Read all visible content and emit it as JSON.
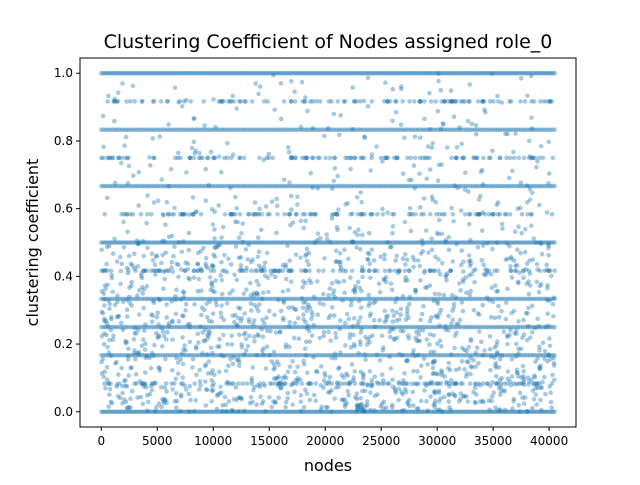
{
  "chart_data": {
    "type": "scatter",
    "title": "Clustering Coefficient of Nodes assigned role_0",
    "xlabel": "nodes",
    "ylabel": "clustering coefficient",
    "xlim": [
      -1900,
      42400
    ],
    "ylim": [
      -0.045,
      1.045
    ],
    "xticks": [
      0,
      5000,
      10000,
      15000,
      20000,
      25000,
      30000,
      35000,
      40000
    ],
    "yticks": [
      0.0,
      0.2,
      0.4,
      0.6,
      0.8,
      1.0
    ],
    "xtick_labels": [
      "0",
      "5000",
      "10000",
      "15000",
      "20000",
      "25000",
      "30000",
      "35000",
      "40000"
    ],
    "ytick_labels": [
      "0.0",
      "0.2",
      "0.4",
      "0.6",
      "0.8",
      "1.0"
    ],
    "node_count_approx": 40500,
    "marker_color": "#1f77b4",
    "marker_opacity": 0.4,
    "grid": false,
    "legend": "none",
    "dense_levels": [
      0.0,
      0.1667,
      0.25,
      0.3333,
      0.5,
      0.6667,
      0.8333,
      1.0
    ],
    "medium_levels": [
      0.0833,
      0.4167,
      0.5833,
      0.75,
      0.9167
    ],
    "scatter_range": [
      0.0,
      0.5
    ],
    "sparse_range": [
      0.5,
      1.0
    ],
    "note_on_points": "Dense horizontal bands at the listed levels spanning all nodes 0 to ~40500; diffuse cloud concentrated between 0.0 and 0.5, sparse points above 0.5."
  }
}
